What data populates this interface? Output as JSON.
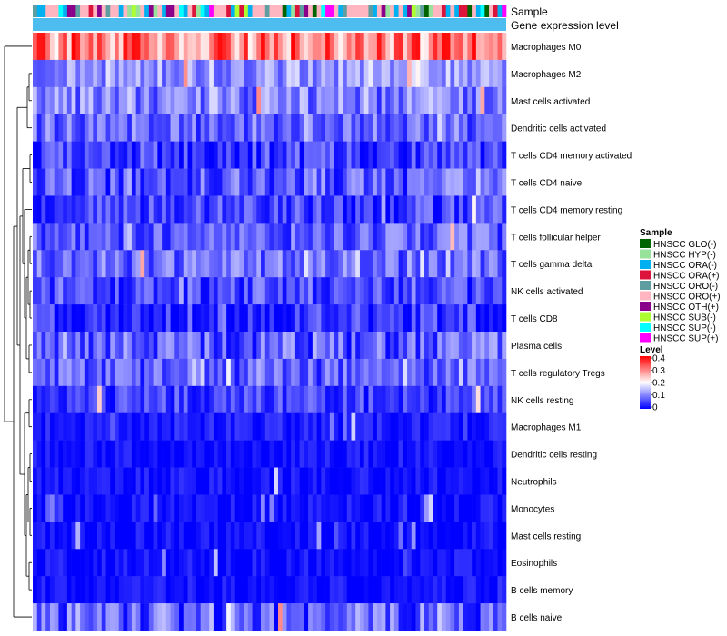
{
  "chart_data": {
    "type": "heatmap",
    "title": "",
    "annotation_tracks": [
      "Sample",
      "Gene expression level"
    ],
    "rows": [
      {
        "label": "Macrophages M0",
        "mean": 0.3,
        "spread": 0.1
      },
      {
        "label": "Macrophages M2",
        "mean": 0.12,
        "spread": 0.06
      },
      {
        "label": "Mast cells activated",
        "mean": 0.1,
        "spread": 0.07
      },
      {
        "label": "Dendritic cells activated",
        "mean": 0.08,
        "spread": 0.06
      },
      {
        "label": "T cells CD4 memory activated",
        "mean": 0.05,
        "spread": 0.06
      },
      {
        "label": "T cells CD4 naive",
        "mean": 0.07,
        "spread": 0.07
      },
      {
        "label": "T cells CD4 memory resting",
        "mean": 0.05,
        "spread": 0.06
      },
      {
        "label": "T cells follicular helper",
        "mean": 0.07,
        "spread": 0.06
      },
      {
        "label": "T cells gamma delta",
        "mean": 0.08,
        "spread": 0.06
      },
      {
        "label": "NK cells activated",
        "mean": 0.06,
        "spread": 0.06
      },
      {
        "label": "T cells CD8",
        "mean": 0.04,
        "spread": 0.06
      },
      {
        "label": "Plasma cells",
        "mean": 0.07,
        "spread": 0.07
      },
      {
        "label": "T cells regulatory  Tregs",
        "mean": 0.07,
        "spread": 0.06
      },
      {
        "label": "NK cells resting",
        "mean": 0.05,
        "spread": 0.05
      },
      {
        "label": "Macrophages M1",
        "mean": 0.02,
        "spread": 0.03
      },
      {
        "label": "Dendritic cells resting",
        "mean": 0.01,
        "spread": 0.03
      },
      {
        "label": "Neutrophils",
        "mean": 0.01,
        "spread": 0.03
      },
      {
        "label": "Monocytes",
        "mean": 0.01,
        "spread": 0.03
      },
      {
        "label": "Mast cells resting",
        "mean": 0.01,
        "spread": 0.03
      },
      {
        "label": "Eosinophils",
        "mean": 0.01,
        "spread": 0.03
      },
      {
        "label": "B cells memory",
        "mean": 0.01,
        "spread": 0.03
      },
      {
        "label": "B cells naive",
        "mean": 0.07,
        "spread": 0.08
      }
    ],
    "n_columns": 110,
    "value_range": [
      0,
      0.4
    ],
    "color_scale": {
      "low": "#0000ff",
      "mid": "#ffffff",
      "high": "#ff0000",
      "mid_value": 0.2
    },
    "expression_track_color": "#4dbcee",
    "sample_legend": {
      "title": "Sample",
      "items": [
        {
          "label": "HNSCC GLO(-)",
          "color": "#006400"
        },
        {
          "label": "HNSCC HYP(-)",
          "color": "#98e29b"
        },
        {
          "label": "HNSCC ORA(-)",
          "color": "#00b0f0"
        },
        {
          "label": "HNSCC ORA(+)",
          "color": "#dc143c"
        },
        {
          "label": "HNSCC ORO(-)",
          "color": "#5f9ea0"
        },
        {
          "label": "HNSCC ORO(+)",
          "color": "#ffb6c1"
        },
        {
          "label": "HNSCC OTH(+)",
          "color": "#8b008b"
        },
        {
          "label": "HNSCC SUB(-)",
          "color": "#adff2f"
        },
        {
          "label": "HNSCC SUP(-)",
          "color": "#00ffff"
        },
        {
          "label": "HNSCC SUP(+)",
          "color": "#ff00ff"
        }
      ]
    },
    "level_legend": {
      "title": "Level",
      "ticks": [
        0.4,
        0.3,
        0.2,
        0.1,
        0
      ],
      "tick_labels": [
        "0.4",
        "0.3",
        "0.2",
        "0.1",
        "0"
      ]
    }
  }
}
